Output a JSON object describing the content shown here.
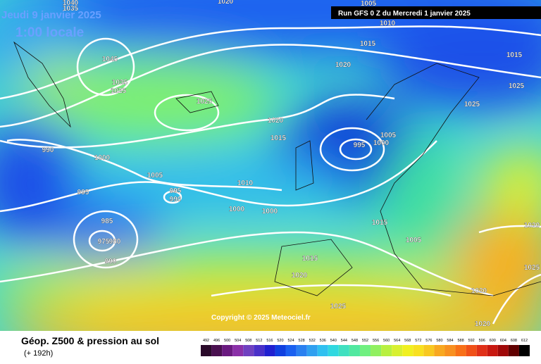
{
  "header": {
    "valid": "Jeudi 9 janvier 2025",
    "local": "1:00 locale",
    "run": "Run GFS 0 Z du Mercredi 1 janvier 2025"
  },
  "map": {
    "isobar_labels": [
      1040,
      1035,
      1020,
      1005,
      1010,
      1015,
      1015,
      1020,
      1025,
      1025,
      1045,
      1035,
      1025,
      1025,
      1020,
      1015,
      1005,
      1000,
      995,
      990,
      1000,
      1005,
      995,
      995,
      990,
      1010,
      1000,
      1000,
      1015,
      985,
      975,
      980,
      990,
      1005,
      1015,
      1020,
      1025,
      1020,
      1020,
      1020,
      1025
    ],
    "copyright": "Copyright © 2025 Meteociel.fr"
  },
  "legend": {
    "title": "Géop. Z500 & pression au sol",
    "lead": "(+ 192h)",
    "scale": [
      492,
      496,
      500,
      504,
      508,
      512,
      516,
      520,
      524,
      528,
      532,
      536,
      540,
      544,
      548,
      552,
      556,
      560,
      564,
      568,
      572,
      576,
      580,
      584,
      588,
      592,
      596,
      600,
      604,
      608,
      612
    ],
    "colors": [
      "#2a0a2a",
      "#4a1050",
      "#6a1a80",
      "#8a30a8",
      "#7040c0",
      "#4a30c8",
      "#2020d0",
      "#1040e0",
      "#1a60f0",
      "#2a80f0",
      "#30a0f0",
      "#30c0f0",
      "#30d8e0",
      "#40e0c0",
      "#50e8a0",
      "#70f080",
      "#90f060",
      "#b8f040",
      "#d8f030",
      "#f0f020",
      "#f8e020",
      "#f8c820",
      "#f8a820",
      "#f89020",
      "#f87018",
      "#f05018",
      "#e03018",
      "#c81810",
      "#a00808",
      "#600000",
      "#000000"
    ]
  }
}
